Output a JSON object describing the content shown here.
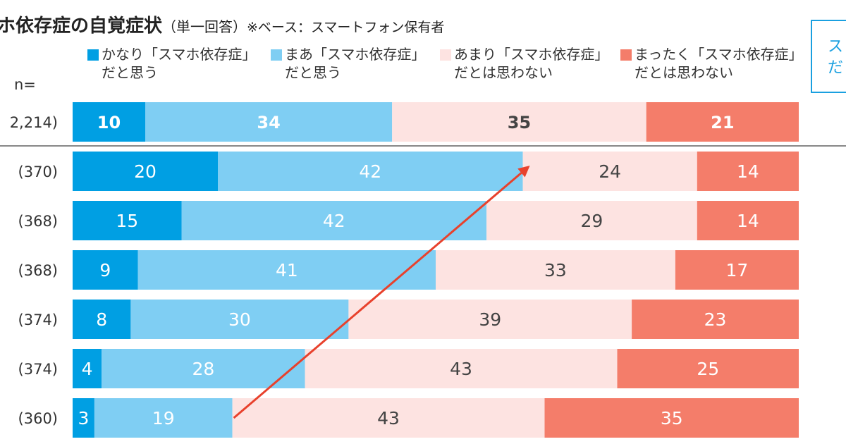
{
  "title": {
    "main": "ホ依存症の自覚症状",
    "sub": "（単一回答）",
    "base": "※ベース：スマートフォン保有者"
  },
  "callout_text": "ス\nだ",
  "n_label": "n=",
  "colors": {
    "level1": "#009fe3",
    "level2": "#7fcef3",
    "level3": "#fde3e1",
    "level4": "#f47d6a",
    "arrow": "#e8412c",
    "separator": "#888888"
  },
  "legend": [
    {
      "label": "かなり「スマホ依存症」\nだと思う"
    },
    {
      "label": "まあ「スマホ依存症」\nだと思う"
    },
    {
      "label": "あまり「スマホ依存症」\nだとは思わない"
    },
    {
      "label": "まったく「スマホ依存症」\nだとは思わない"
    }
  ],
  "chart_data": {
    "type": "bar",
    "orientation": "horizontal-stacked-100",
    "series": [
      {
        "name": "かなり「スマホ依存症」だと思う",
        "values": [
          10,
          20,
          15,
          9,
          8,
          4,
          3
        ]
      },
      {
        "name": "まあ「スマホ依存症」だと思う",
        "values": [
          34,
          42,
          42,
          41,
          30,
          28,
          19
        ]
      },
      {
        "name": "あまり「スマホ依存症」だとは思わない",
        "values": [
          35,
          24,
          29,
          33,
          39,
          43,
          43
        ]
      },
      {
        "name": "まったく「スマホ依存症」だとは思わない",
        "values": [
          21,
          14,
          14,
          17,
          23,
          25,
          35
        ]
      }
    ],
    "row_labels": [
      "2,214)",
      "(370)",
      "(368)",
      "(368)",
      "(374)",
      "(374)",
      "(360)"
    ],
    "xlim": [
      0,
      100
    ],
    "legend_position": "top",
    "annotation": "arrow"
  }
}
